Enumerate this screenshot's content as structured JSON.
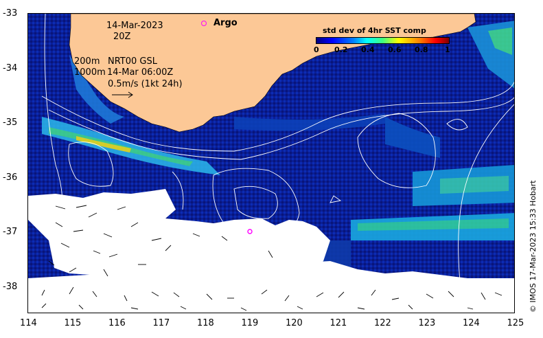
{
  "map": {
    "date": "14-Mar-2023",
    "time": "20Z",
    "depth_line1": "200m",
    "depth_line2": "1000m",
    "product": "NRT00 GSL",
    "product_time": "14-Mar 06:00Z",
    "scale_label": "0.5m/s (1kt 24h)",
    "argo_label": "Argo",
    "credit": "© IMOS 17-Mar-2023 15:33 Hobart",
    "colors": {
      "land": "#fcc896",
      "ocean_low": "#0a1e96",
      "cloud": "#ffffff",
      "argo": "#ff00ff"
    }
  },
  "colorbar": {
    "title": "std dev of 4hr SST comp",
    "ticks": [
      "0",
      "0.2",
      "0.4",
      "0.6",
      "0.8",
      "1"
    ]
  },
  "axes": {
    "x_ticks": [
      "114",
      "115",
      "116",
      "117",
      "118",
      "119",
      "120",
      "121",
      "122",
      "123",
      "124",
      "125"
    ],
    "y_ticks": [
      "-33",
      "-34",
      "-35",
      "-36",
      "-37",
      "-38"
    ]
  }
}
